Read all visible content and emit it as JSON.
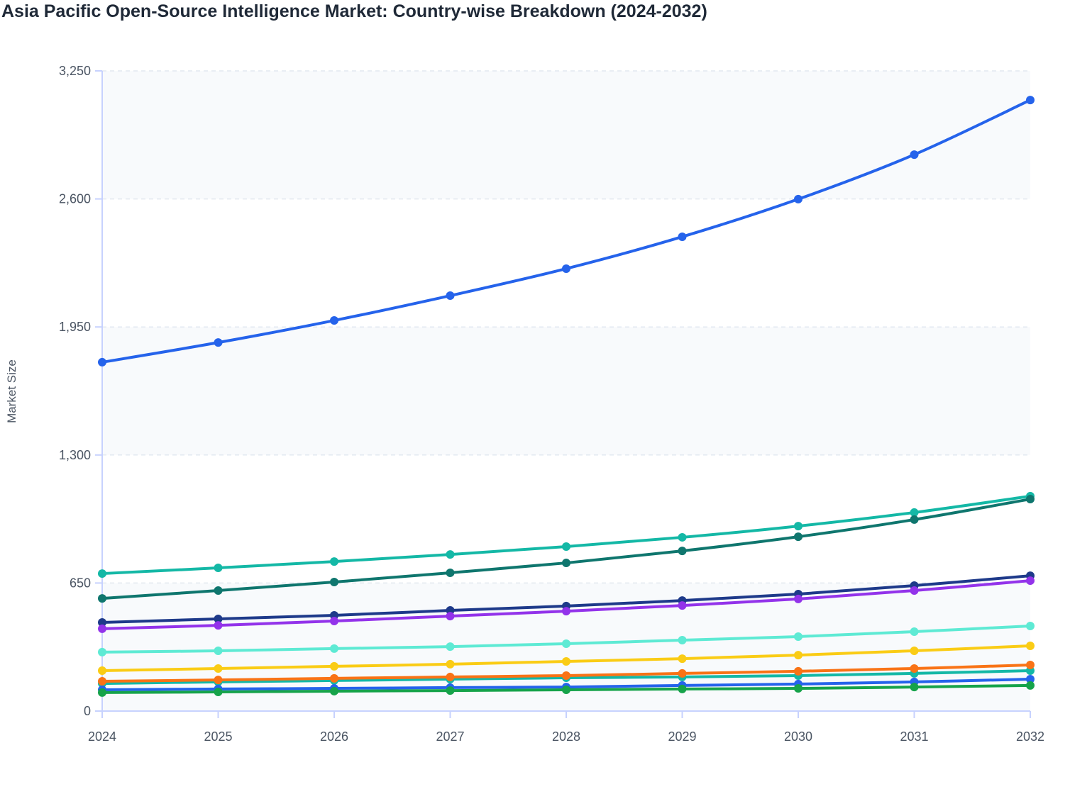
{
  "chart_data": {
    "type": "line",
    "title": "Asia Pacific Open-Source Intelligence Market: Country-wise Breakdown (2024-2032)",
    "xlabel": "",
    "ylabel": "Market Size",
    "x": [
      "2024",
      "2025",
      "2026",
      "2027",
      "2028",
      "2029",
      "2030",
      "2031",
      "2032"
    ],
    "ylim": [
      0,
      3250
    ],
    "yticks": [
      "0",
      "650",
      "1,300",
      "1,950",
      "2,600",
      "3,250"
    ],
    "ytick_values": [
      0,
      650,
      1300,
      1950,
      2600,
      3250
    ],
    "grid": true,
    "legend": "none",
    "series": [
      {
        "color": "#2563eb",
        "values": [
          1771,
          1871,
          1983,
          2109,
          2246,
          2408,
          2599,
          2825,
          3102
        ]
      },
      {
        "color": "#14b8a6",
        "values": [
          698,
          727,
          759,
          795,
          835,
          882,
          939,
          1008,
          1091
        ]
      },
      {
        "color": "#0f766e",
        "values": [
          572,
          612,
          655,
          702,
          752,
          813,
          885,
          972,
          1076
        ]
      },
      {
        "color": "#1e3a8a",
        "values": [
          450,
          468,
          486,
          511,
          533,
          561,
          594,
          637,
          687
        ]
      },
      {
        "color": "#9333ea",
        "values": [
          418,
          435,
          457,
          482,
          507,
          536,
          569,
          612,
          662
        ]
      },
      {
        "color": "#5eead4",
        "values": [
          299,
          306,
          317,
          327,
          342,
          360,
          378,
          403,
          432
        ]
      },
      {
        "color": "#facc15",
        "values": [
          205,
          216,
          227,
          238,
          252,
          266,
          284,
          306,
          331
        ]
      },
      {
        "color": "#14b8a6",
        "values": [
          140,
          148,
          155,
          162,
          169,
          173,
          180,
          191,
          205
        ]
      },
      {
        "color": "#f97316",
        "values": [
          151,
          158,
          166,
          173,
          180,
          191,
          202,
          216,
          234
        ]
      },
      {
        "color": "#2563eb",
        "values": [
          108,
          112,
          115,
          119,
          122,
          130,
          137,
          148,
          162
        ]
      },
      {
        "color": "#16a34a",
        "values": [
          94,
          97,
          101,
          104,
          108,
          112,
          115,
          122,
          130
        ]
      }
    ]
  }
}
